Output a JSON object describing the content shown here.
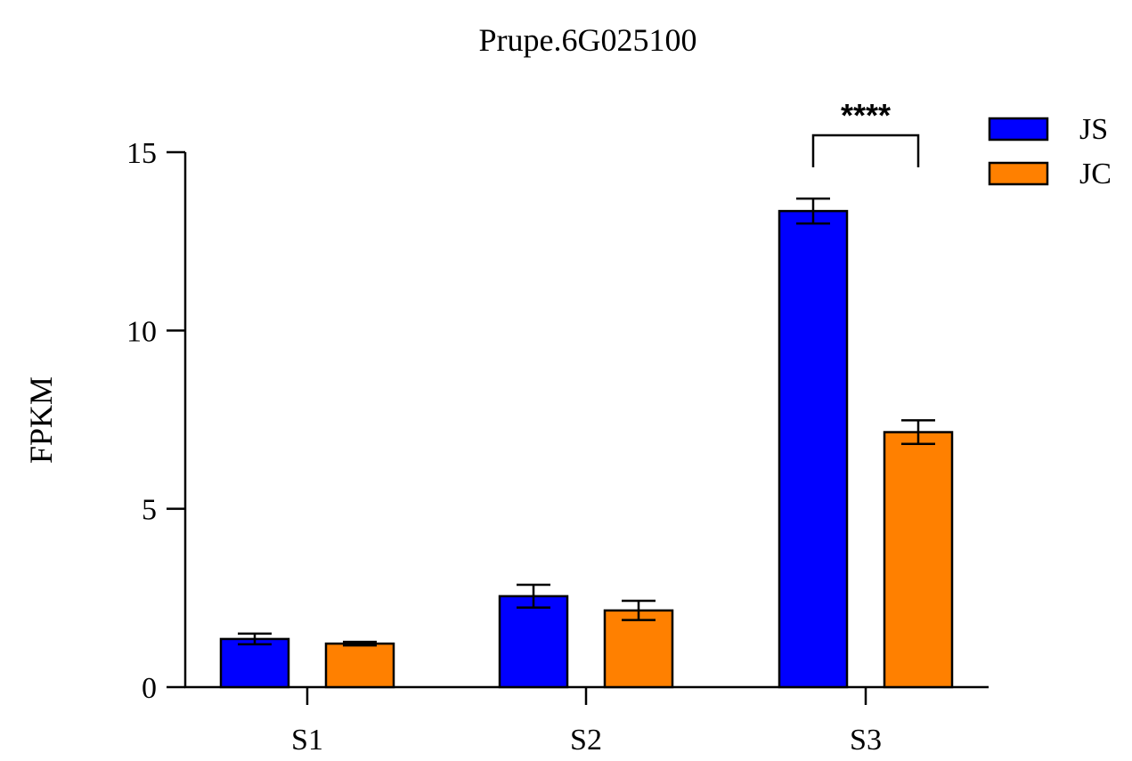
{
  "chart_data": {
    "type": "bar",
    "title": "Prupe.6G025100",
    "xlabel": "",
    "ylabel": "FPKM",
    "ylim": [
      0,
      15
    ],
    "yticks": [
      "0",
      "5",
      "10",
      "15"
    ],
    "categories": [
      "S1",
      "S2",
      "S3"
    ],
    "series": [
      {
        "name": "JS",
        "color": "#0000FF",
        "values": [
          1.35,
          2.55,
          13.35
        ],
        "errors": [
          0.15,
          0.32,
          0.35
        ]
      },
      {
        "name": "JC",
        "color": "#FF8000",
        "values": [
          1.22,
          2.15,
          7.15
        ],
        "errors": [
          0.05,
          0.27,
          0.33
        ]
      }
    ],
    "annotations": [
      {
        "text": "****",
        "category": "S3"
      }
    ],
    "legend_position": "top-right",
    "grid": false
  }
}
